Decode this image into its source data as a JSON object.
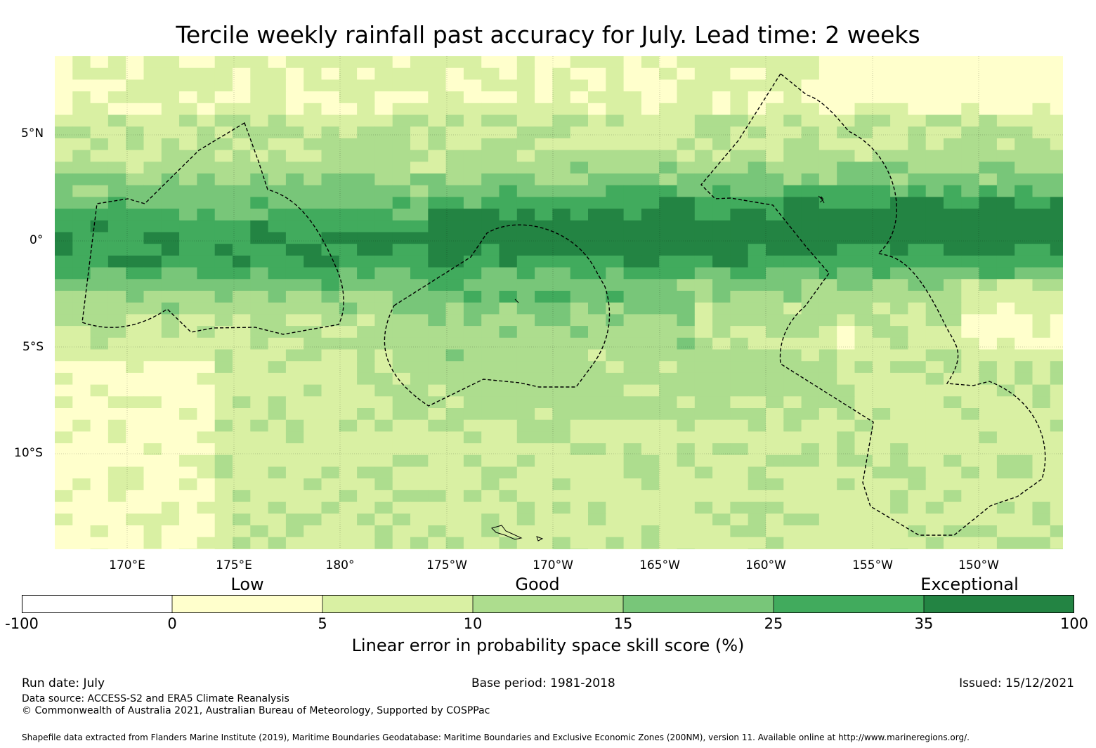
{
  "title": "Tercile weekly rainfall past accuracy for July. Lead time: 2 weeks",
  "map": {
    "lat_labels": [
      "5°N",
      "0°",
      "5°S",
      "10°S"
    ],
    "lon_labels": [
      "170°E",
      "175°E",
      "180°",
      "175°W",
      "170°W",
      "165°W",
      "160°W",
      "155°W",
      "150°W"
    ],
    "grid_lon_deg": [
      168.6,
      216.0
    ],
    "grid_lat_deg": [
      -14.25,
      8.75
    ],
    "cell_deg": 0.833,
    "colors": [
      "#ffffff",
      "#ffffcc",
      "#d9f0a3",
      "#addd8e",
      "#78c679",
      "#41ab5d",
      "#238443"
    ]
  },
  "colorbar": {
    "categories": [
      "Low",
      "Good",
      "Exceptional"
    ],
    "ticks": [
      "-100",
      "0",
      "5",
      "10",
      "15",
      "25",
      "35",
      "100"
    ],
    "colors": [
      "#ffffff",
      "#ffffcc",
      "#d9f0a3",
      "#addd8e",
      "#78c679",
      "#41ab5d",
      "#238443"
    ],
    "label": "Linear error in probability space skill score (%)"
  },
  "footer": {
    "run_date": "Run date: July",
    "base_period": "Base period: 1981-2018",
    "issued": "Issued: 15/12/2021",
    "data_source": "Data source: ACCESS-S2 and ERA5 Climate Reanalysis",
    "copyright": "© Commonwealth of Australia 2021, Australian Bureau of Meteorology, Supported by COSPPac",
    "shapefile": "Shapefile data extracted from Flanders Marine Institute (2019), Maritime Boundaries Geodatabase: Maritime Boundaries and Exclusive Economic Zones (200NM), version 11. Available online at http://www.marineregions.org/."
  }
}
